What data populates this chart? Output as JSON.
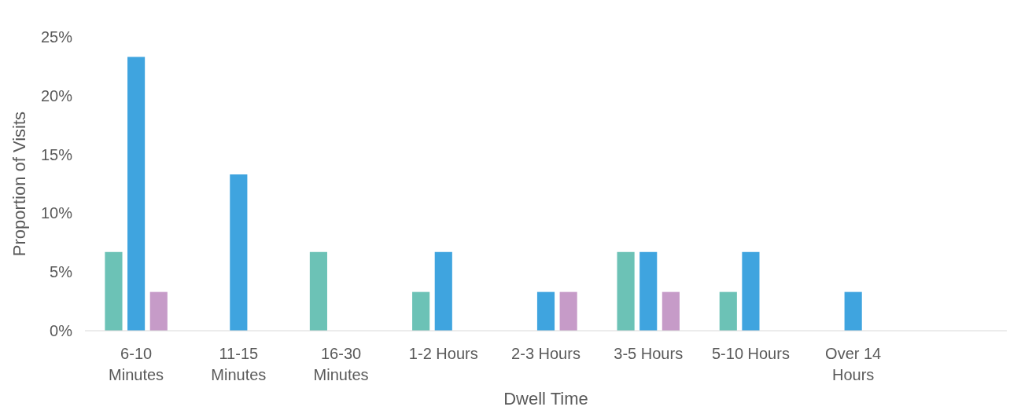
{
  "chart_data": {
    "type": "bar",
    "xlabel": "Dwell Time",
    "ylabel": "Proportion of Visits",
    "categories": [
      "6-10\nMinutes",
      "11-15\nMinutes",
      "16-30\nMinutes",
      "1-2 Hours",
      "2-3 Hours",
      "3-5 Hours",
      "5-10 Hours",
      "Over 14\nHours",
      null
    ],
    "series": [
      {
        "color": "#6cc2b6",
        "values": [
          6.7,
          null,
          6.7,
          3.3,
          null,
          6.7,
          3.3,
          null,
          null
        ]
      },
      {
        "color": "#3fa4df",
        "values": [
          23.3,
          13.3,
          null,
          6.7,
          3.3,
          6.7,
          6.7,
          3.3,
          null
        ]
      },
      {
        "color": "#c69bc8",
        "values": [
          3.3,
          null,
          null,
          null,
          3.3,
          3.3,
          null,
          null,
          null
        ]
      }
    ],
    "ylim": [
      0,
      25
    ],
    "yticks": [
      {
        "value": 0,
        "label": "0%"
      },
      {
        "value": 5,
        "label": "5%"
      },
      {
        "value": 10,
        "label": "10%"
      },
      {
        "value": 15,
        "label": "15%"
      },
      {
        "value": 20,
        "label": "20%"
      },
      {
        "value": 25,
        "label": "25%"
      }
    ],
    "grid": false
  }
}
